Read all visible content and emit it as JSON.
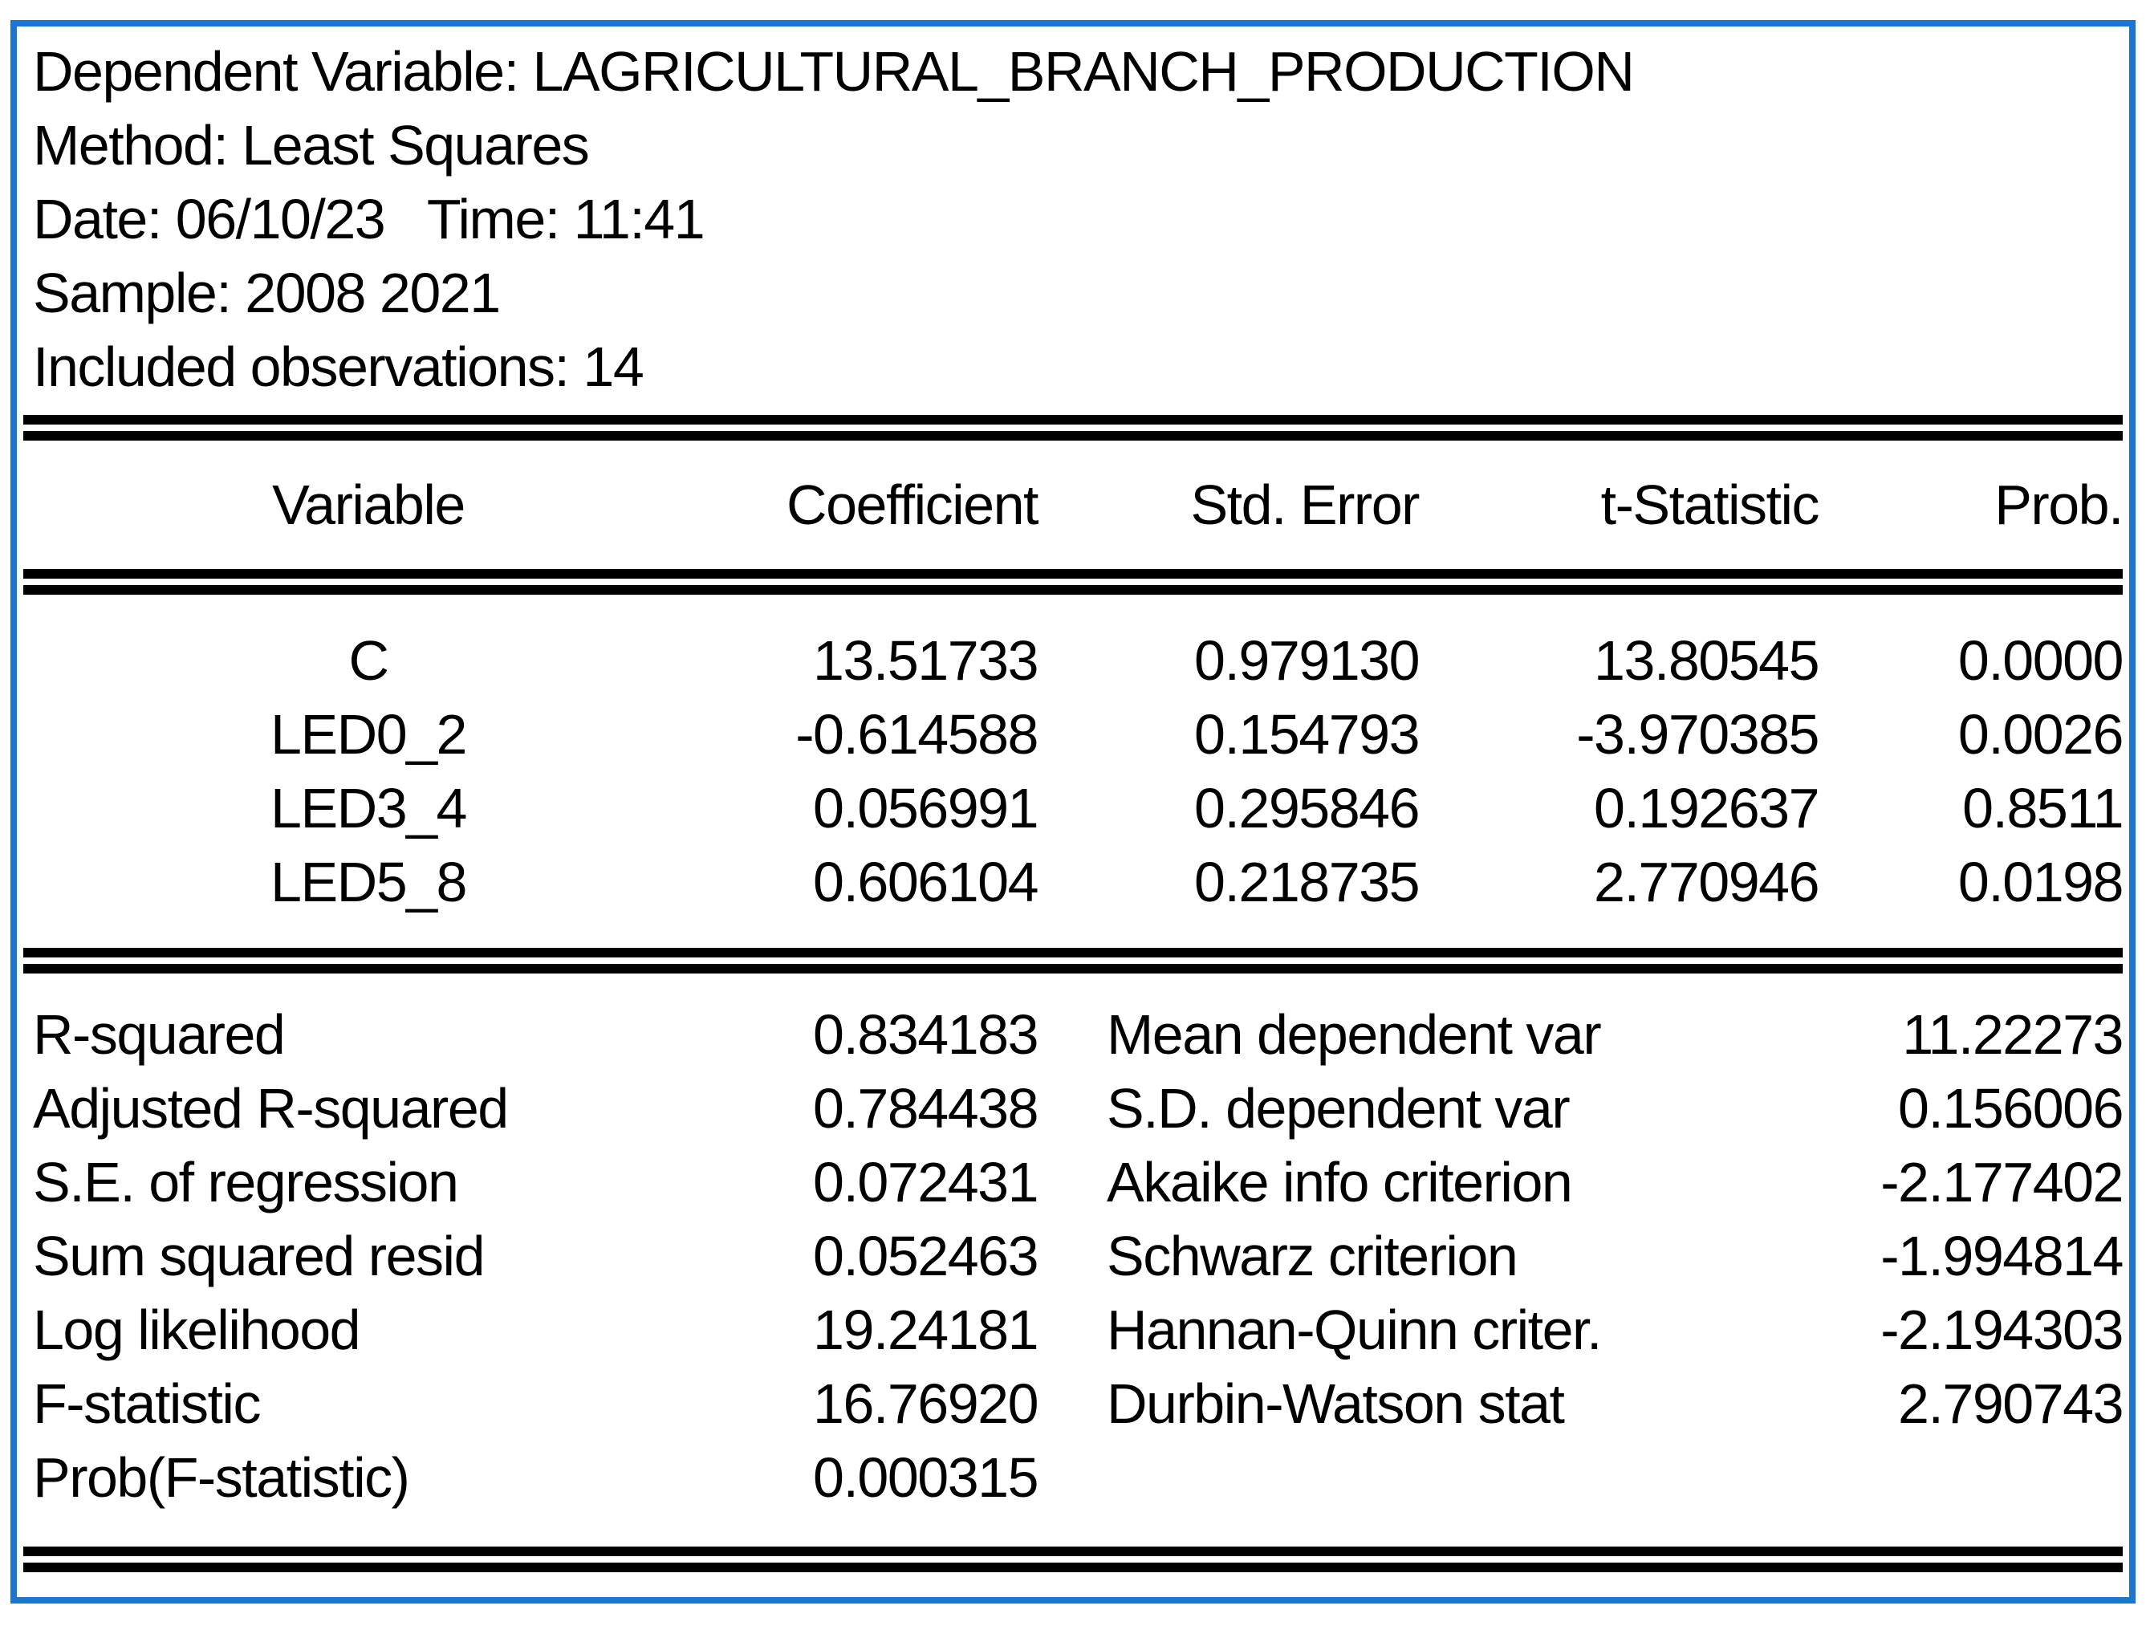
{
  "colors": {
    "border_blue": "#1b75d1",
    "text": "#000000",
    "rule": "#000000",
    "background": "#ffffff"
  },
  "header": {
    "dependent_variable": "Dependent Variable: LAGRICULTURAL_BRANCH_PRODUCTION",
    "method": "Method: Least Squares",
    "date_time": "Date: 06/10/23   Time: 11:41",
    "sample": "Sample: 2008 2021",
    "included_observations": "Included observations: 14"
  },
  "coefficient_table": {
    "columns": {
      "variable": "Variable",
      "coefficient": "Coefficient",
      "std_error": "Std. Error",
      "t_statistic": "t-Statistic",
      "prob": "Prob."
    },
    "rows": [
      {
        "variable": "C",
        "coefficient": "13.51733",
        "std_error": "0.979130",
        "t_statistic": "13.80545",
        "prob": "0.0000"
      },
      {
        "variable": "LED0_2",
        "coefficient": "-0.614588",
        "std_error": "0.154793",
        "t_statistic": "-3.970385",
        "prob": "0.0026"
      },
      {
        "variable": "LED3_4",
        "coefficient": "0.056991",
        "std_error": "0.295846",
        "t_statistic": "0.192637",
        "prob": "0.8511"
      },
      {
        "variable": "LED5_8",
        "coefficient": "0.606104",
        "std_error": "0.218735",
        "t_statistic": "2.770946",
        "prob": "0.0198"
      }
    ]
  },
  "summary_stats": {
    "left": [
      {
        "label": "R-squared",
        "value": "0.834183"
      },
      {
        "label": "Adjusted R-squared",
        "value": "0.784438"
      },
      {
        "label": "S.E. of regression",
        "value": "0.072431"
      },
      {
        "label": "Sum squared resid",
        "value": "0.052463"
      },
      {
        "label": "Log likelihood",
        "value": "19.24181"
      },
      {
        "label": "F-statistic",
        "value": "16.76920"
      },
      {
        "label": "Prob(F-statistic)",
        "value": "0.000315"
      }
    ],
    "right": [
      {
        "label": "Mean dependent var",
        "value": "11.22273"
      },
      {
        "label": "S.D. dependent var",
        "value": "0.156006"
      },
      {
        "label": "Akaike info criterion",
        "value": "-2.177402"
      },
      {
        "label": "Schwarz criterion",
        "value": "-1.994814"
      },
      {
        "label": "Hannan-Quinn criter.",
        "value": "-2.194303"
      },
      {
        "label": "Durbin-Watson stat",
        "value": "2.790743"
      }
    ]
  }
}
